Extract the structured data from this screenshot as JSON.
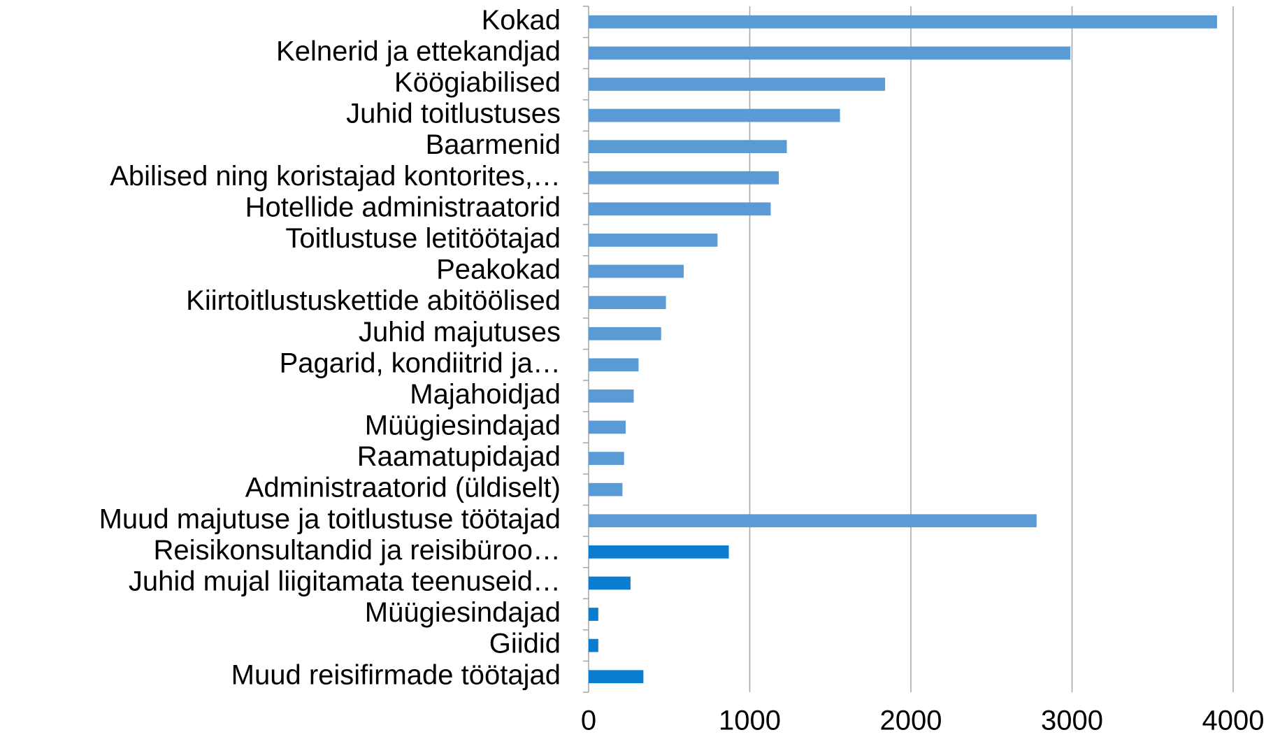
{
  "chart_data": {
    "type": "barh",
    "categories": [
      "Kokad",
      "Kelnerid ja ettekandjad",
      "Köögiabilised",
      "Juhid toitlustuses",
      "Baarmenid",
      "Abilised ning koristajad kontorites,…",
      "Hotellide administraatorid",
      "Toitlustuse letitöötajad",
      "Peakokad",
      "Kiirtoitlustuskettide abitöölised",
      "Juhid majutuses",
      "Pagarid, kondiitrid ja…",
      "Majahoidjad",
      "Müügiesindajad",
      "Raamatupidajad",
      "Administraatorid (üldiselt)",
      "Muud majutuse ja toitlustuse töötajad",
      "Reisikonsultandid ja reisibüroo…",
      "Juhid mujal liigitamata teenuseid…",
      "Müügiesindajad",
      "Giidid",
      "Muud reisifirmade töötajad"
    ],
    "values": [
      3900,
      2990,
      1840,
      1560,
      1230,
      1180,
      1130,
      800,
      590,
      480,
      450,
      310,
      280,
      230,
      220,
      210,
      2780,
      870,
      260,
      60,
      60,
      340
    ],
    "colors": [
      "#5b9bd5",
      "#5b9bd5",
      "#5b9bd5",
      "#5b9bd5",
      "#5b9bd5",
      "#5b9bd5",
      "#5b9bd5",
      "#5b9bd5",
      "#5b9bd5",
      "#5b9bd5",
      "#5b9bd5",
      "#5b9bd5",
      "#5b9bd5",
      "#5b9bd5",
      "#5b9bd5",
      "#5b9bd5",
      "#5b9bd5",
      "#0b7dd0",
      "#0b7dd0",
      "#0b7dd0",
      "#0b7dd0",
      "#0b7dd0"
    ],
    "xlim": [
      0,
      4000
    ],
    "xticks": [
      0,
      1000,
      2000,
      3000,
      4000
    ],
    "grid": true
  }
}
